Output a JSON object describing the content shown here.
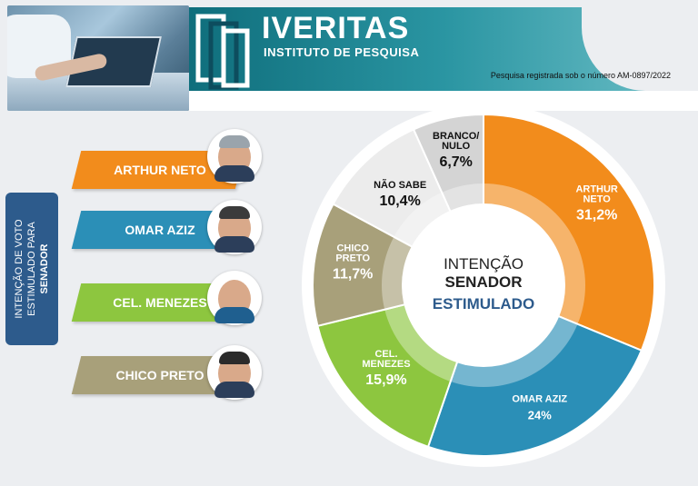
{
  "header": {
    "brand": "IVERITAS",
    "subtitle": "INSTITUTO DE PESQUISA",
    "registration": "Pesquisa registrada sob o número AM-0897/2022"
  },
  "side_label": {
    "line1": "INTENÇÃO DE VOTO",
    "line2": "ESTIMULADO PARA",
    "line3": "SENADOR"
  },
  "candidates": [
    {
      "name": "ARTHUR NETO",
      "color": "#f28c1c"
    },
    {
      "name": "OMAR AZIZ",
      "color": "#2b8fb7"
    },
    {
      "name": "CEL. MENEZES",
      "color": "#8dc63f"
    },
    {
      "name": "CHICO PRETO",
      "color": "#a8a07a"
    }
  ],
  "chart_data": {
    "type": "pie",
    "center": {
      "line1": "INTENÇÃO",
      "line2": "SENADOR",
      "line3": "ESTIMULADO"
    },
    "slices": [
      {
        "label": "ARTHUR NETO",
        "value": 31.2,
        "display": "31,2%",
        "color": "#f28c1c"
      },
      {
        "label": "OMAR AZIZ",
        "value": 24,
        "display": "24%",
        "color": "#2b8fb7"
      },
      {
        "label": "CEL. MENEZES",
        "value": 15.9,
        "display": "15,9%",
        "color": "#8dc63f"
      },
      {
        "label": "CHICO PRETO",
        "value": 11.7,
        "display": "11,7%",
        "color": "#a8a07a"
      },
      {
        "label": "NÃO SABE",
        "value": 10.4,
        "display": "10,4%",
        "color": "#ececec"
      },
      {
        "label": "BRANCO/ NULO",
        "value": 6.7,
        "display": "6,7%",
        "color": "#d4d4d4"
      }
    ]
  }
}
